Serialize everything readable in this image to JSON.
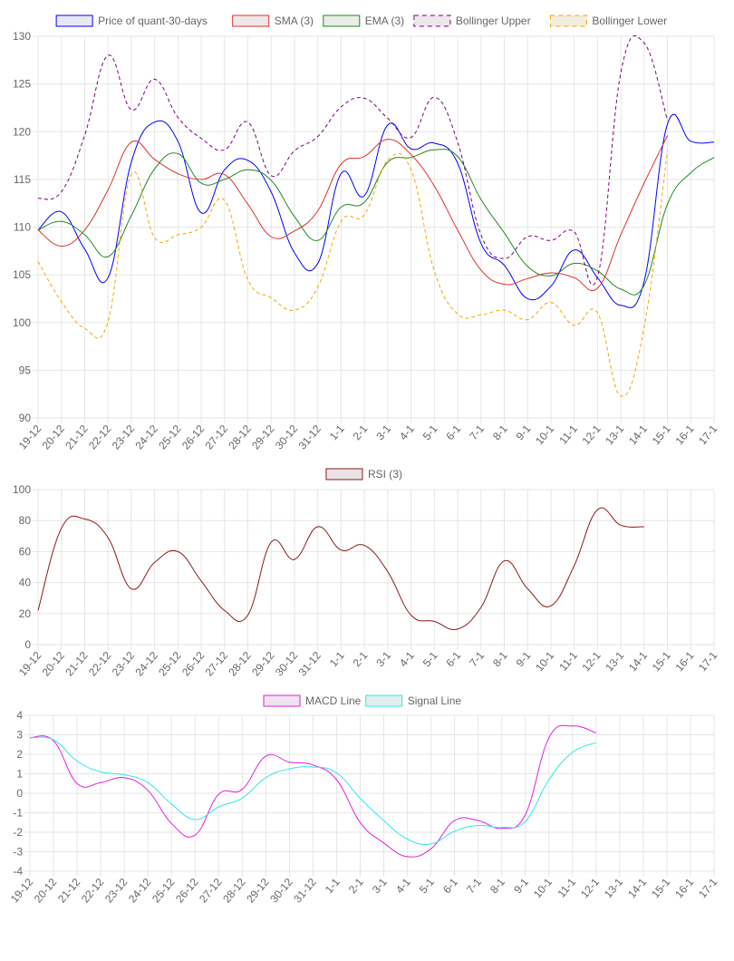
{
  "chart_data": [
    {
      "type": "line",
      "title": "",
      "categories": [
        "19-12",
        "20-12",
        "21-12",
        "22-12",
        "23-12",
        "24-12",
        "25-12",
        "26-12",
        "27-12",
        "28-12",
        "29-12",
        "30-12",
        "31-12",
        "1-1",
        "2-1",
        "3-1",
        "4-1",
        "5-1",
        "6-1",
        "7-1",
        "8-1",
        "9-1",
        "10-1",
        "11-1",
        "12-1",
        "13-1",
        "14-1",
        "15-1",
        "16-1",
        "17-1"
      ],
      "ylim": [
        90,
        130
      ],
      "yticks": [
        90,
        95,
        100,
        105,
        110,
        115,
        120,
        125,
        130
      ],
      "series": [
        {
          "name": "Price of quant-30-days",
          "color": "#0000ff",
          "fill": "#e8e8f4",
          "dashed": false,
          "values": [
            109.7,
            111.6,
            107.7,
            104.7,
            116.8,
            121.0,
            119.0,
            111.5,
            116.0,
            117.0,
            113.7,
            107.3,
            106.2,
            115.6,
            113.3,
            120.7,
            118.2,
            118.8,
            116.7,
            108.3,
            106.0,
            102.5,
            103.8,
            107.6,
            104.7,
            101.8,
            104.3,
            120.8,
            119.0,
            118.9
          ]
        },
        {
          "name": "SMA (3)",
          "color": "#e03030",
          "fill": "#f0e8e8",
          "dashed": false,
          "values": [
            109.7,
            108.0,
            109.7,
            113.9,
            118.9,
            117.1,
            115.6,
            115.0,
            115.5,
            112.4,
            109.0,
            109.6,
            111.7,
            116.6,
            117.4,
            119.2,
            117.6,
            114.3,
            109.7,
            105.5,
            104.0,
            104.6,
            105.2,
            104.7,
            103.6,
            109.2,
            114.6,
            119.6,
            null,
            null
          ]
        },
        {
          "name": "EMA (3)",
          "color": "#228822",
          "fill": "#e8eee8",
          "dashed": false,
          "values": [
            109.7,
            110.6,
            109.2,
            106.9,
            111.2,
            116.1,
            117.7,
            114.6,
            115.0,
            116.0,
            114.9,
            111.1,
            108.6,
            112.1,
            112.6,
            116.8,
            117.3,
            118.1,
            117.4,
            112.9,
            109.4,
            105.9,
            104.9,
            106.2,
            105.4,
            103.5,
            103.9,
            112.4,
            115.7,
            117.3
          ]
        },
        {
          "name": "Bollinger Upper",
          "color": "#800080",
          "fill": "#eee6ee",
          "dashed": true,
          "values": [
            113.0,
            113.7,
            119.6,
            128.0,
            122.3,
            125.5,
            121.5,
            119.3,
            118.1,
            121.0,
            115.4,
            118.0,
            119.5,
            122.6,
            123.5,
            121.4,
            119.4,
            123.6,
            118.9,
            109.2,
            106.7,
            109.0,
            108.6,
            109.5,
            104.8,
            126.2,
            129.3,
            121.2,
            null,
            null
          ]
        },
        {
          "name": "Bollinger Lower",
          "color": "#f5a800",
          "fill": "#f2eddd",
          "dashed": true,
          "values": [
            106.4,
            102.2,
            99.4,
            100.1,
            115.5,
            108.9,
            109.2,
            110.0,
            112.8,
            104.5,
            102.6,
            101.3,
            103.7,
            110.6,
            111.3,
            117.0,
            116.0,
            105.4,
            100.9,
            100.8,
            101.3,
            100.3,
            102.1,
            99.7,
            101.0,
            92.3,
            99.5,
            118.0,
            null,
            null
          ]
        }
      ]
    },
    {
      "type": "line",
      "title": "",
      "categories": [
        "19-12",
        "20-12",
        "21-12",
        "22-12",
        "23-12",
        "24-12",
        "25-12",
        "26-12",
        "27-12",
        "28-12",
        "29-12",
        "30-12",
        "31-12",
        "1-1",
        "2-1",
        "3-1",
        "4-1",
        "5-1",
        "6-1",
        "7-1",
        "8-1",
        "9-1",
        "10-1",
        "11-1",
        "12-1",
        "13-1",
        "14-1",
        "15-1",
        "16-1",
        "17-1"
      ],
      "ylim": [
        0,
        100
      ],
      "yticks": [
        0,
        20,
        40,
        60,
        80,
        100
      ],
      "series": [
        {
          "name": "RSI (3)",
          "color": "#8b1a1a",
          "fill": "#ebe3e3",
          "dashed": false,
          "values": [
            22,
            75,
            81,
            69,
            36,
            53,
            60,
            41,
            22,
            19,
            66,
            55,
            76,
            61,
            64,
            47,
            19,
            15,
            10,
            24,
            54,
            36,
            25,
            51,
            87,
            77,
            76,
            null,
            null,
            null
          ]
        }
      ]
    },
    {
      "type": "line",
      "title": "",
      "categories": [
        "19-12",
        "20-12",
        "21-12",
        "22-12",
        "23-12",
        "24-12",
        "25-12",
        "26-12",
        "27-12",
        "28-12",
        "29-12",
        "30-12",
        "31-12",
        "1-1",
        "2-1",
        "3-1",
        "4-1",
        "5-1",
        "6-1",
        "7-1",
        "8-1",
        "9-1",
        "10-1",
        "11-1",
        "12-1",
        "13-1",
        "14-1",
        "15-1",
        "16-1",
        "17-1"
      ],
      "ylim": [
        -4,
        4
      ],
      "yticks": [
        -4,
        -3,
        -2,
        -1,
        0,
        1,
        2,
        3,
        4
      ],
      "series": [
        {
          "name": "MACD Line",
          "color": "#e020e0",
          "fill": "#eee3ee",
          "dashed": false,
          "values": [
            2.85,
            2.7,
            0.5,
            0.55,
            0.8,
            0.15,
            -1.55,
            -2.15,
            -0.05,
            0.2,
            1.9,
            1.6,
            1.45,
            0.7,
            -1.5,
            -2.55,
            -3.25,
            -2.85,
            -1.4,
            -1.4,
            -1.8,
            -1.1,
            2.85,
            3.45,
            3.1,
            null,
            null,
            null,
            null,
            null
          ]
        },
        {
          "name": "Signal Line",
          "color": "#30e8e8",
          "fill": "#e0eeee",
          "dashed": false,
          "values": [
            2.85,
            2.75,
            1.65,
            1.1,
            0.95,
            0.55,
            -0.55,
            -1.35,
            -0.7,
            -0.25,
            0.8,
            1.25,
            1.35,
            1.05,
            -0.25,
            -1.4,
            -2.35,
            -2.6,
            -1.95,
            -1.65,
            -1.75,
            -1.45,
            0.7,
            2.1,
            2.6,
            null,
            null,
            null,
            null,
            null
          ]
        }
      ]
    }
  ]
}
